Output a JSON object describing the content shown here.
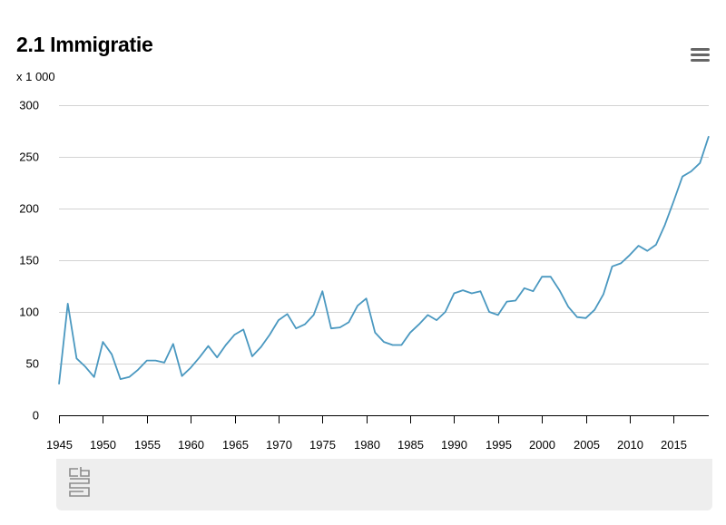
{
  "header": {
    "title": "2.1 Immigratie",
    "unit": "x 1 000"
  },
  "menu": {
    "icon": "hamburger-menu-icon"
  },
  "footer": {
    "logo_icon": "cbs-logo-icon"
  },
  "colors": {
    "line": "#4a98c0",
    "grid": "#d3d3d3",
    "axis": "#000000"
  },
  "chart_data": {
    "type": "line",
    "x": [
      1945,
      1946,
      1947,
      1948,
      1949,
      1950,
      1951,
      1952,
      1953,
      1954,
      1955,
      1956,
      1957,
      1958,
      1959,
      1960,
      1961,
      1962,
      1963,
      1964,
      1965,
      1966,
      1967,
      1968,
      1969,
      1970,
      1971,
      1972,
      1973,
      1974,
      1975,
      1976,
      1977,
      1978,
      1979,
      1980,
      1981,
      1982,
      1983,
      1984,
      1985,
      1986,
      1987,
      1988,
      1989,
      1990,
      1991,
      1992,
      1993,
      1994,
      1995,
      1996,
      1997,
      1998,
      1999,
      2000,
      2001,
      2002,
      2003,
      2004,
      2005,
      2006,
      2007,
      2008,
      2009,
      2010,
      2011,
      2012,
      2013,
      2014,
      2015,
      2016,
      2017,
      2018,
      2019
    ],
    "series": [
      {
        "name": "",
        "values": [
          30,
          108,
          55,
          47,
          37,
          71,
          59,
          35,
          37,
          44,
          53,
          53,
          51,
          69,
          38,
          46,
          56,
          67,
          56,
          68,
          78,
          83,
          57,
          66,
          78,
          92,
          98,
          84,
          88,
          97,
          120,
          84,
          85,
          90,
          106,
          113,
          80,
          71,
          68,
          68,
          80,
          88,
          97,
          92,
          100,
          118,
          121,
          118,
          120,
          100,
          97,
          110,
          111,
          123,
          120,
          134,
          134,
          121,
          105,
          95,
          94,
          102,
          117,
          144,
          147,
          155,
          164,
          159,
          165,
          184,
          207,
          231,
          236,
          244,
          270
        ]
      }
    ],
    "xticks": [
      1945,
      1950,
      1955,
      1960,
      1965,
      1970,
      1975,
      1980,
      1985,
      1990,
      1995,
      2000,
      2005,
      2010,
      2015
    ],
    "yticks": [
      0,
      50,
      100,
      150,
      200,
      250,
      300
    ],
    "xlim": [
      1945,
      2019
    ],
    "ylim": [
      0,
      300
    ],
    "grid": true,
    "legend": "none"
  }
}
